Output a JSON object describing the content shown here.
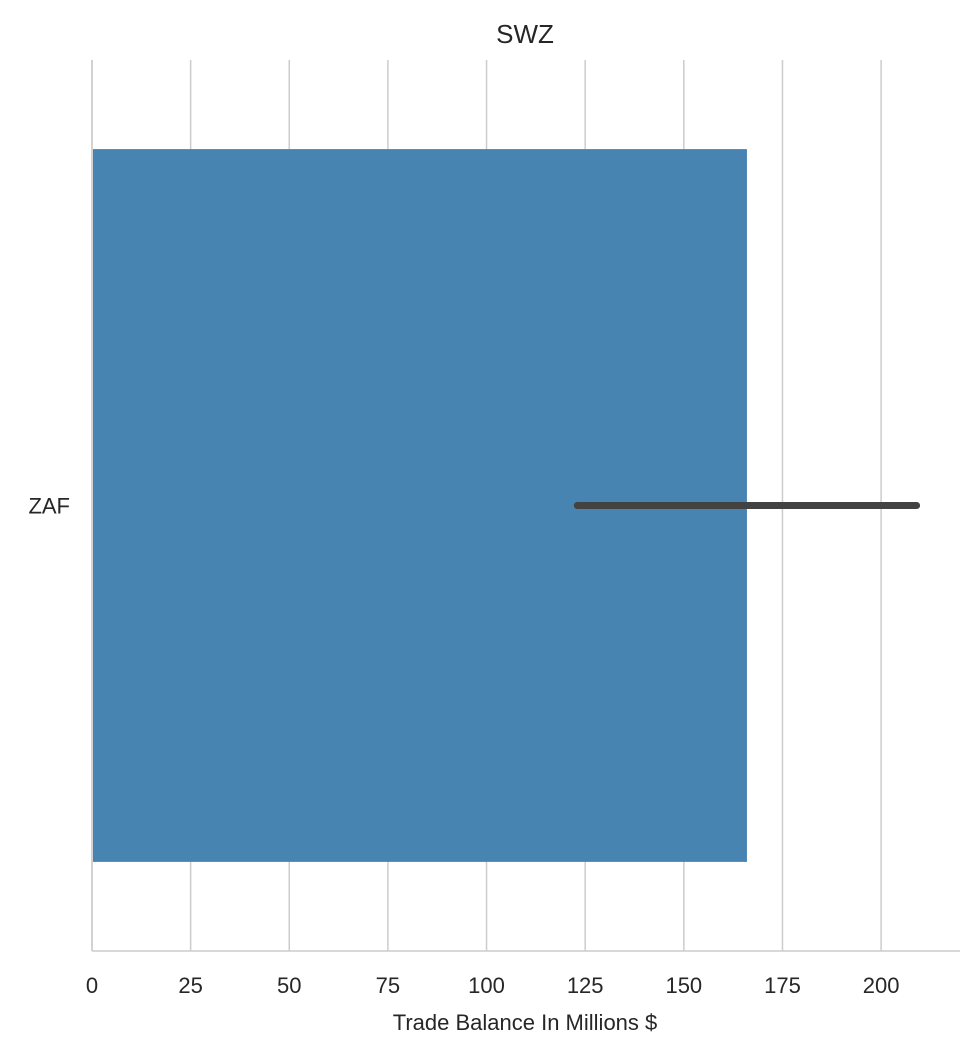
{
  "chart_data": {
    "type": "bar",
    "orientation": "horizontal",
    "title": "SWZ",
    "xlabel": "Trade Balance In Millions $",
    "ylabel": "",
    "categories": [
      "ZAF"
    ],
    "values": [
      166
    ],
    "error_bars": [
      [
        123,
        209
      ]
    ],
    "xlim": [
      0,
      220
    ],
    "xticks": [
      0,
      25,
      50,
      75,
      100,
      125,
      150,
      175,
      200
    ],
    "xtick_labels": [
      "0",
      "25",
      "50",
      "75",
      "100",
      "125",
      "150",
      "175",
      "200"
    ],
    "grid": "x",
    "legend": "none",
    "colors": {
      "bar": "#4884b1",
      "error_bar": "#424242",
      "grid": "#cccccc",
      "text": "#262626"
    }
  }
}
